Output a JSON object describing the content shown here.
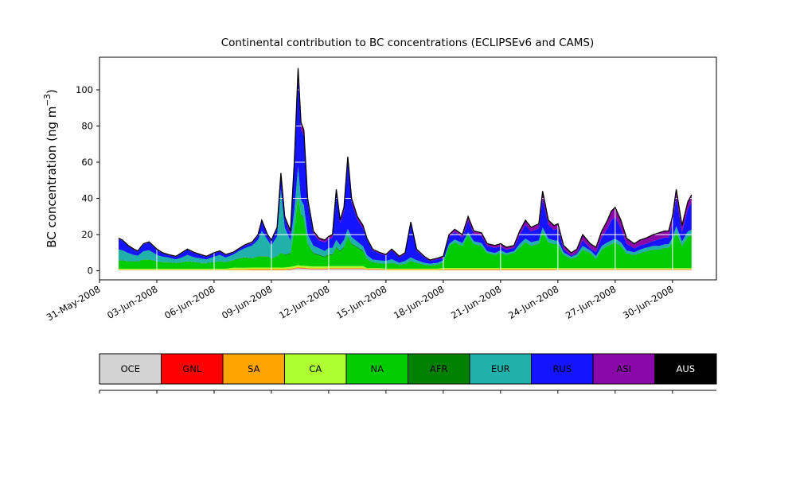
{
  "chart_data": {
    "type": "area",
    "stacked": true,
    "title": "Continental contribution to BC concentrations (ECLIPSEv6 and CAMS)",
    "ylabel": {
      "pre": "BC concentration (ng m",
      "sup": "−3",
      "post": ")"
    },
    "xlim": [
      0,
      32.3
    ],
    "ylim": [
      -5,
      118
    ],
    "yticks": [
      0,
      20,
      40,
      60,
      80,
      100
    ],
    "xticks": [
      {
        "t": 0,
        "label": "31-May-2008"
      },
      {
        "t": 3,
        "label": "03-Jun-2008"
      },
      {
        "t": 6,
        "label": "06-Jun-2008"
      },
      {
        "t": 9,
        "label": "09-Jun-2008"
      },
      {
        "t": 12,
        "label": "12-Jun-2008"
      },
      {
        "t": 15,
        "label": "15-Jun-2008"
      },
      {
        "t": 18,
        "label": "18-Jun-2008"
      },
      {
        "t": 21,
        "label": "21-Jun-2008"
      },
      {
        "t": 24,
        "label": "24-Jun-2008"
      },
      {
        "t": 27,
        "label": "27-Jun-2008"
      },
      {
        "t": 30,
        "label": "30-Jun-2008"
      }
    ],
    "grid_on": true,
    "grid_color": "#ffffff",
    "total_line_color": "#000000",
    "legend_position": "bottom",
    "x_days": [
      1,
      1.2,
      1.5,
      1.8,
      2,
      2.3,
      2.6,
      3,
      3.3,
      3.6,
      4,
      4.3,
      4.6,
      5,
      5.3,
      5.6,
      6,
      6.3,
      6.6,
      7,
      7.3,
      7.6,
      8,
      8.3,
      8.5,
      8.8,
      9,
      9.3,
      9.5,
      9.7,
      10,
      10.2,
      10.4,
      10.55,
      10.7,
      10.9,
      11.2,
      11.5,
      11.8,
      12,
      12.2,
      12.4,
      12.6,
      12.8,
      13,
      13.2,
      13.5,
      13.8,
      14,
      14.3,
      14.7,
      15,
      15.3,
      15.7,
      16,
      16.3,
      16.6,
      17,
      17.3,
      17.7,
      18,
      18.3,
      18.6,
      19,
      19.3,
      19.6,
      20,
      20.3,
      20.7,
      21,
      21.3,
      21.7,
      22,
      22.3,
      22.6,
      23,
      23.2,
      23.5,
      23.8,
      24,
      24.3,
      24.7,
      25,
      25.3,
      25.7,
      26,
      26.3,
      26.6,
      26.8,
      27,
      27.3,
      27.6,
      28,
      28.3,
      28.6,
      29,
      29.3,
      29.6,
      29.8,
      30,
      30.2,
      30.5,
      30.8,
      31
    ],
    "series": [
      {
        "name": "OCE",
        "color": "#d3d3d3",
        "values": [
          0.3,
          0.3,
          0.3,
          0.3,
          0.3,
          0.3,
          0.3,
          0.3,
          0.3,
          0.3,
          0.3,
          0.3,
          0.3,
          0.3,
          0.3,
          0.3,
          0.3,
          0.3,
          0.3,
          0.3,
          0.3,
          0.3,
          0.4,
          0.4,
          0.4,
          0.4,
          0.4,
          0.4,
          0.4,
          0.4,
          0.6,
          1,
          1.5,
          1.2,
          1.2,
          1,
          0.8,
          0.8,
          0.8,
          1,
          1,
          1,
          1,
          1,
          1,
          1,
          1,
          1,
          0.6,
          0.6,
          0.6,
          0.3,
          0.3,
          0.3,
          0.3,
          0.3,
          0.3,
          0.3,
          0.3,
          0.3,
          0.4,
          0.4,
          0.4,
          0.4,
          0.4,
          0.4,
          0.4,
          0.4,
          0.4,
          0.4,
          0.4,
          0.4,
          0.4,
          0.4,
          0.4,
          0.4,
          0.4,
          0.4,
          0.4,
          0.5,
          0.5,
          0.5,
          0.5,
          0.5,
          0.5,
          0.5,
          0.5,
          0.5,
          0.5,
          0.5,
          0.5,
          0.5,
          0.5,
          0.5,
          0.5,
          0.5,
          0.5,
          0.5,
          0.5,
          0.5,
          0.5,
          0.5,
          0.5,
          0.5
        ]
      },
      {
        "name": "GNL",
        "color": "#ff0000",
        "values": [
          0.1,
          0.1,
          0.1,
          0.1,
          0.1,
          0.1,
          0.1,
          0.1,
          0.1,
          0.1,
          0.1,
          0.1,
          0.1,
          0.1,
          0.1,
          0.1,
          0.1,
          0.1,
          0.1,
          0.1,
          0.1,
          0.1,
          0.1,
          0.1,
          0.1,
          0.1,
          0.1,
          0.1,
          0.1,
          0.1,
          0.2,
          0.2,
          0.2,
          0.2,
          0.2,
          0.2,
          0.2,
          0.2,
          0.2,
          0.2,
          0.2,
          0.2,
          0.2,
          0.2,
          0.2,
          0.2,
          0.2,
          0.2,
          0.1,
          0.1,
          0.1,
          0.1,
          0.1,
          0.1,
          0.1,
          0.1,
          0.1,
          0.1,
          0.1,
          0.1,
          0.1,
          0.1,
          0.1,
          0.1,
          0.1,
          0.1,
          0.1,
          0.1,
          0.1,
          0.1,
          0.1,
          0.1,
          0.1,
          0.1,
          0.1,
          0.1,
          0.1,
          0.1,
          0.1,
          0.1,
          0.1,
          0.1,
          0.1,
          0.1,
          0.1,
          0.1,
          0.1,
          0.1,
          0.1,
          0.1,
          0.1,
          0.1,
          0.1,
          0.1,
          0.1,
          0.1,
          0.1,
          0.1,
          0.1,
          0.1,
          0.1,
          0.1,
          0.1,
          0.1
        ]
      },
      {
        "name": "SA",
        "color": "#ffa500",
        "values": [
          0.2,
          0.2,
          0.2,
          0.2,
          0.2,
          0.2,
          0.2,
          0.2,
          0.2,
          0.2,
          0.2,
          0.2,
          0.2,
          0.2,
          0.2,
          0.2,
          0.2,
          0.2,
          0.2,
          0.5,
          0.5,
          0.5,
          0.5,
          0.5,
          0.5,
          0.5,
          0.5,
          0.5,
          0.5,
          0.5,
          0.4,
          0.4,
          0.4,
          0.4,
          0.4,
          0.4,
          0.4,
          0.4,
          0.4,
          0.4,
          0.4,
          0.4,
          0.4,
          0.4,
          0.4,
          0.4,
          0.4,
          0.4,
          0.3,
          0.3,
          0.3,
          0.3,
          0.3,
          0.3,
          0.3,
          0.3,
          0.3,
          0.3,
          0.3,
          0.3,
          0.3,
          0.3,
          0.3,
          0.3,
          0.3,
          0.3,
          0.3,
          0.3,
          0.3,
          0.3,
          0.3,
          0.3,
          0.3,
          0.3,
          0.3,
          0.3,
          0.3,
          0.3,
          0.3,
          0.3,
          0.3,
          0.3,
          0.3,
          0.3,
          0.3,
          0.3,
          0.3,
          0.3,
          0.3,
          0.3,
          0.3,
          0.3,
          0.3,
          0.3,
          0.3,
          0.3,
          0.3,
          0.3,
          0.3,
          0.3,
          0.3,
          0.3,
          0.3,
          0.3
        ]
      },
      {
        "name": "CA",
        "color": "#adff2f",
        "values": [
          0.5,
          0.5,
          0.5,
          0.5,
          0.5,
          0.5,
          0.5,
          0.5,
          0.5,
          0.5,
          0.5,
          0.5,
          0.5,
          0.5,
          0.5,
          0.5,
          0.5,
          0.5,
          0.5,
          0.8,
          0.8,
          0.8,
          0.8,
          0.8,
          0.8,
          0.8,
          0.8,
          0.8,
          0.8,
          0.8,
          1,
          1,
          1,
          1,
          1,
          1,
          1,
          1,
          1,
          1,
          1,
          1,
          1,
          1,
          1,
          1,
          1,
          1,
          0.5,
          0.5,
          0.5,
          0.5,
          0.5,
          0.5,
          0.5,
          0.5,
          0.5,
          0.5,
          0.5,
          0.5,
          0.8,
          0.8,
          0.8,
          0.8,
          0.8,
          0.8,
          0.8,
          0.8,
          0.8,
          0.8,
          0.8,
          0.8,
          0.8,
          0.8,
          0.8,
          0.8,
          0.8,
          0.8,
          0.8,
          0.6,
          0.6,
          0.6,
          0.6,
          0.6,
          0.6,
          0.6,
          0.6,
          0.6,
          0.6,
          0.6,
          0.6,
          0.6,
          0.6,
          0.6,
          0.6,
          0.6,
          0.6,
          0.6,
          0.6,
          0.6,
          0.6,
          0.6,
          0.6,
          0.6
        ]
      },
      {
        "name": "NA",
        "color": "#00cc00",
        "values": [
          4.5,
          4.5,
          4,
          4,
          4,
          5,
          5,
          4,
          3.5,
          3.5,
          3,
          3.5,
          4,
          3.5,
          3,
          3,
          3.5,
          4,
          3.5,
          4,
          5,
          5.5,
          5,
          6,
          6,
          6,
          5,
          6,
          8,
          7,
          7,
          20,
          38,
          28,
          26,
          12,
          7,
          6,
          5,
          6,
          6,
          10,
          8,
          10,
          16,
          12,
          10,
          8,
          5,
          3,
          2.5,
          2.5,
          3,
          2,
          2.5,
          4,
          3,
          2,
          1.5,
          2,
          3,
          12,
          14,
          12,
          18,
          13,
          12,
          8,
          7,
          8,
          7,
          8,
          11,
          14,
          12,
          13,
          20,
          14,
          13,
          13,
          7,
          5,
          6,
          10,
          8,
          5,
          10,
          12,
          13,
          14,
          12,
          8,
          7,
          8,
          9,
          10,
          10,
          11,
          11,
          14,
          20,
          12,
          17,
          18
        ]
      },
      {
        "name": "AFR",
        "color": "#008000",
        "values": [
          0.2,
          0.2,
          0.2,
          0.2,
          0.2,
          0.2,
          0.2,
          0.2,
          0.2,
          0.2,
          0.2,
          0.2,
          0.2,
          0.2,
          0.2,
          0.2,
          0.2,
          0.2,
          0.2,
          0.2,
          0.2,
          0.2,
          0.2,
          0.2,
          0.2,
          0.2,
          0.2,
          0.2,
          0.2,
          0.2,
          0.5,
          0.5,
          0.5,
          0.5,
          0.5,
          0.5,
          0.5,
          0.5,
          0.5,
          0.5,
          0.5,
          0.5,
          0.5,
          0.5,
          0.5,
          0.5,
          0.5,
          0.5,
          0.2,
          0.2,
          0.2,
          0.2,
          0.2,
          0.2,
          0.2,
          0.2,
          0.2,
          0.2,
          0.2,
          0.2,
          0.2,
          0.2,
          0.2,
          0.2,
          0.2,
          0.2,
          0.2,
          0.2,
          0.2,
          0.2,
          0.2,
          0.2,
          0.2,
          0.2,
          0.2,
          0.2,
          0.2,
          0.2,
          0.2,
          0.2,
          0.2,
          0.2,
          0.2,
          0.2,
          0.2,
          0.2,
          0.2,
          0.2,
          0.2,
          0.2,
          0.2,
          0.2,
          0.2,
          0.2,
          0.2,
          0.2,
          0.2,
          0.2,
          0.2,
          0.2,
          0.2,
          0.2,
          0.2,
          0.2
        ]
      },
      {
        "name": "EUR",
        "color": "#20b2aa",
        "values": [
          6,
          5.5,
          4.5,
          3.5,
          3,
          4.5,
          5,
          3.5,
          3,
          2.5,
          2,
          2.5,
          3.5,
          2.5,
          2.5,
          2,
          3,
          3.5,
          2.5,
          3,
          4,
          5,
          7,
          9,
          14,
          9,
          7,
          11,
          35,
          15,
          7,
          10,
          16,
          8,
          7,
          5,
          4,
          3.5,
          3,
          3.5,
          3.5,
          4,
          3,
          4,
          4,
          3.5,
          3,
          2.5,
          2,
          1.5,
          1.5,
          1.5,
          2,
          1,
          1.5,
          2,
          1.5,
          1,
          1,
          1,
          1,
          1,
          1.5,
          1.5,
          1.5,
          1.5,
          1.5,
          1,
          1,
          1.5,
          1,
          1,
          2,
          2,
          2,
          2,
          2,
          2,
          2,
          2,
          1.5,
          1,
          1.5,
          2,
          1.5,
          1.5,
          2,
          2,
          2,
          2,
          2,
          1.5,
          1.5,
          2,
          2,
          2,
          2,
          2,
          2,
          2.5,
          3,
          2.5,
          3,
          3
        ]
      },
      {
        "name": "RUS",
        "color": "#1414ff",
        "values": [
          5.8,
          5.3,
          3.8,
          2.8,
          2.3,
          3.8,
          4.3,
          2.8,
          1.8,
          1.3,
          1.3,
          2.3,
          2.8,
          2.3,
          1.8,
          1.3,
          1.8,
          1.8,
          1.3,
          1,
          1,
          1.5,
          1.4,
          2.4,
          5.4,
          2.4,
          2.4,
          4.4,
          8.4,
          5.4,
          3.2,
          23.8,
          48.3,
          38.6,
          38.1,
          17.8,
          6.5,
          4.3,
          4.8,
          4.8,
          5.8,
          25.8,
          12.3,
          15.8,
          37.3,
          19.3,
          12.3,
          9.8,
          8.6,
          5.2,
          3.7,
          3,
          4.9,
          3,
          3.9,
          18.5,
          5.3,
          3,
          1.6,
          2,
          1.3,
          3.9,
          4.1,
          3.1,
          6.6,
          4.1,
          4.1,
          2.9,
          2.9,
          2.1,
          1.9,
          1.8,
          5.1,
          7.6,
          5.9,
          6.6,
          16.1,
          7.6,
          5.8,
          6.7,
          1.9,
          0.7,
          0.7,
          3.2,
          1.2,
          2.2,
          4.7,
          7.7,
          11.2,
          12.2,
          7.7,
          3.7,
          2.2,
          2.2,
          2.2,
          2.7,
          3.7,
          3.7,
          3.7,
          8.2,
          16.2,
          5.2,
          12.2,
          15.2
        ]
      },
      {
        "name": "ASI",
        "color": "#8a08a8",
        "values": [
          0.3,
          0.3,
          0.3,
          0.3,
          0.3,
          0.3,
          0.3,
          0.3,
          0.3,
          0.3,
          0.3,
          0.3,
          0.3,
          0.3,
          0.3,
          0.3,
          0.3,
          0.3,
          0.3,
          0.3,
          0.3,
          0.3,
          0.5,
          0.5,
          0.5,
          0.5,
          0.5,
          0.5,
          0.5,
          0.5,
          2,
          3,
          6,
          4,
          3.5,
          2,
          1.5,
          1.2,
          1.2,
          1.5,
          1.5,
          2,
          1.5,
          2,
          2.5,
          2,
          1.5,
          1.5,
          0.6,
          0.5,
          0.5,
          0.5,
          0.6,
          0.5,
          0.6,
          1,
          0.7,
          0.5,
          0.4,
          0.5,
          0.8,
          1.2,
          1.5,
          1.5,
          2,
          1.5,
          1.5,
          1.2,
          1.2,
          1.5,
          1.2,
          1.3,
          2,
          2.5,
          2.2,
          2.5,
          4,
          2.5,
          2.3,
          2.5,
          1.8,
          1.5,
          2,
          3,
          2.5,
          2.5,
          3.5,
          4.5,
          5,
          5,
          4.5,
          3,
          2.5,
          3,
          3,
          3.5,
          3.5,
          3.5,
          3.5,
          3.5,
          4,
          3.5,
          4,
          4
        ]
      },
      {
        "name": "AUS",
        "color": "#000000",
        "text_color": "#ffffff",
        "values": 0.1
      }
    ]
  }
}
